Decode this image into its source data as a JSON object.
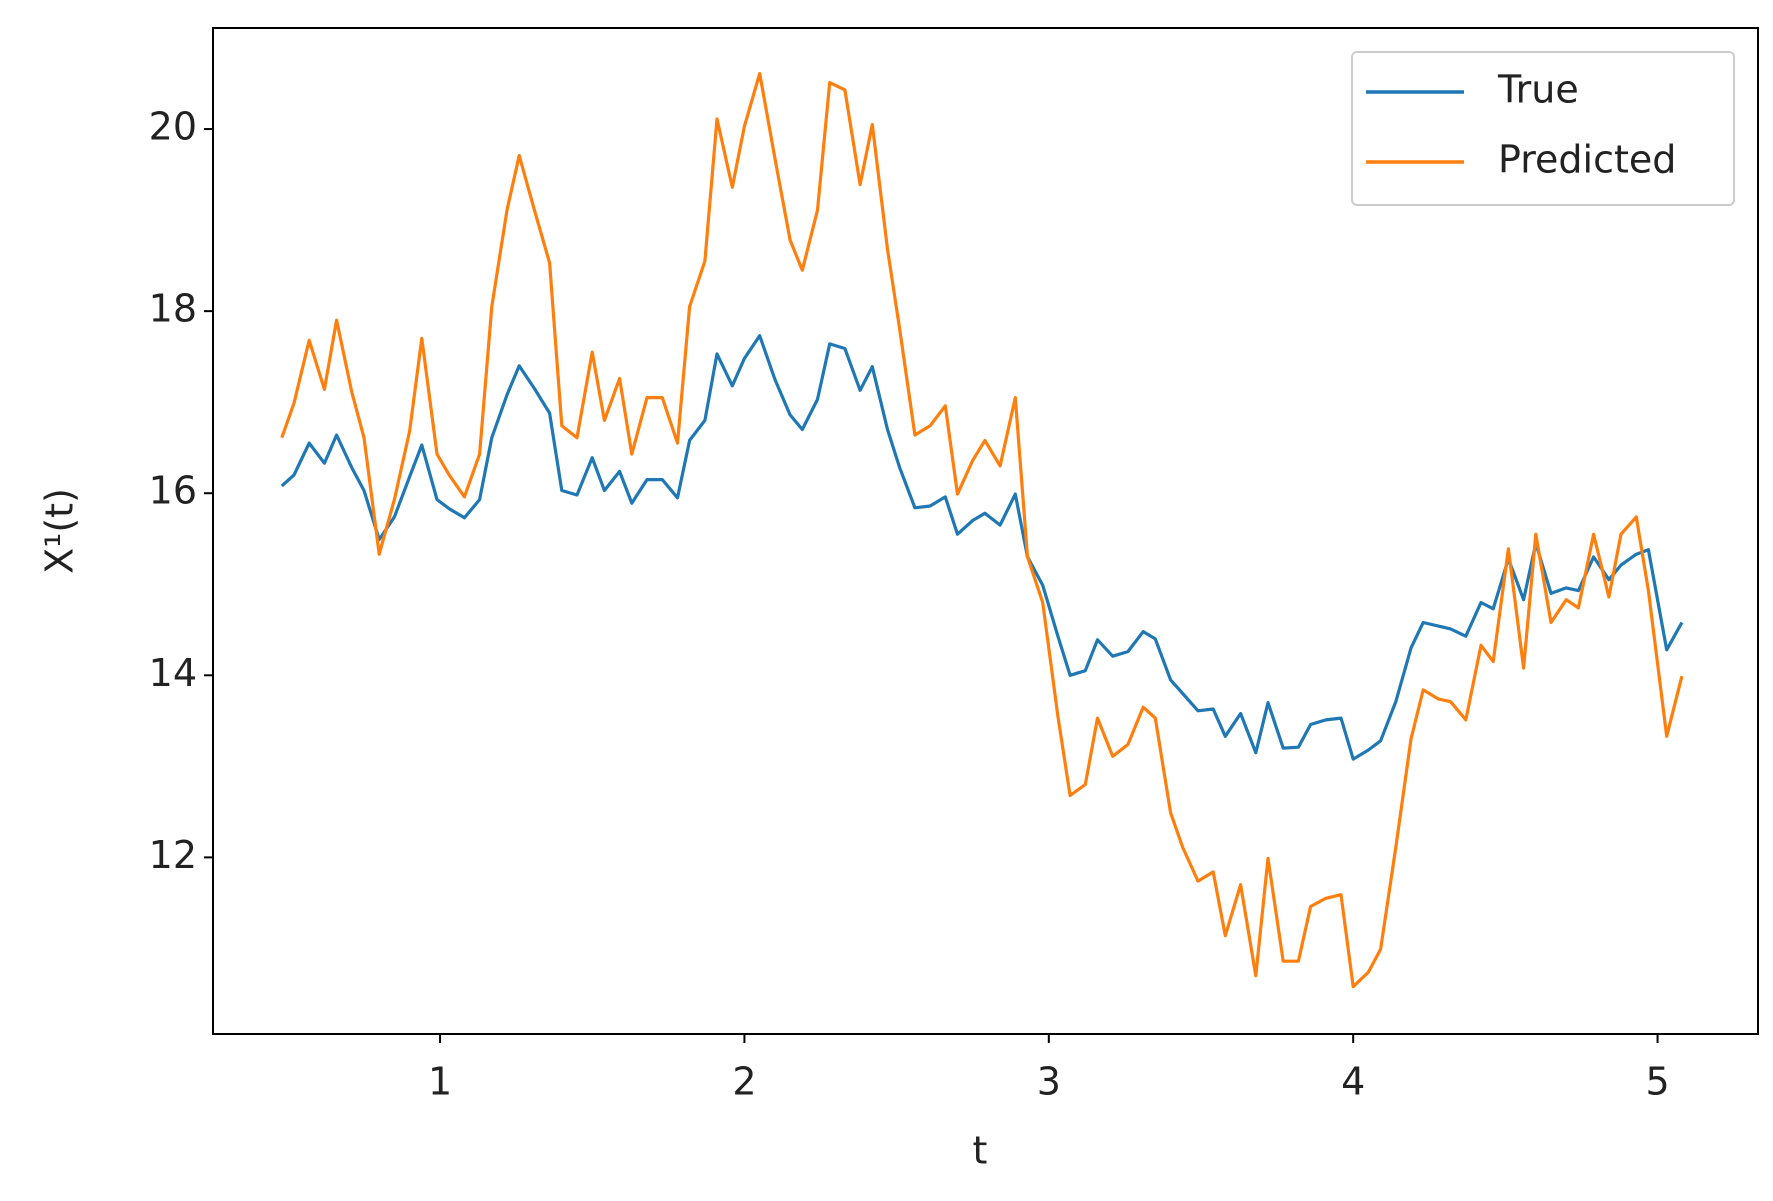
{
  "chart_data": {
    "type": "line",
    "x_label": "t",
    "y_label": "X¹(t)",
    "x": [
      0.48,
      0.52,
      0.57,
      0.62,
      0.66,
      0.71,
      0.75,
      0.8,
      0.85,
      0.9,
      0.94,
      0.99,
      1.03,
      1.08,
      1.13,
      1.17,
      1.22,
      1.26,
      1.31,
      1.36,
      1.4,
      1.45,
      1.5,
      1.54,
      1.59,
      1.63,
      1.68,
      1.73,
      1.78,
      1.82,
      1.87,
      1.91,
      1.96,
      2.0,
      2.05,
      2.1,
      2.15,
      2.19,
      2.24,
      2.28,
      2.33,
      2.38,
      2.42,
      2.47,
      2.51,
      2.56,
      2.61,
      2.66,
      2.7,
      2.75,
      2.79,
      2.84,
      2.89,
      2.93,
      2.98,
      3.03,
      3.07,
      3.12,
      3.16,
      3.21,
      3.26,
      3.31,
      3.35,
      3.4,
      3.44,
      3.49,
      3.54,
      3.58,
      3.63,
      3.68,
      3.72,
      3.77,
      3.82,
      3.86,
      3.91,
      3.96,
      4.0,
      4.05,
      4.09,
      4.14,
      4.19,
      4.23,
      4.28,
      4.32,
      4.37,
      4.42,
      4.46,
      4.51,
      4.56,
      4.6,
      4.65,
      4.7,
      4.74,
      4.79,
      4.84,
      4.88,
      4.93,
      4.97,
      5.03,
      5.08
    ],
    "series": [
      {
        "name": "True",
        "color": "#1f77b4",
        "values": [
          16.08,
          16.2,
          16.55,
          16.33,
          16.64,
          16.28,
          16.03,
          15.49,
          15.74,
          16.18,
          16.53,
          15.93,
          15.83,
          15.73,
          15.93,
          16.61,
          17.08,
          17.4,
          17.15,
          16.88,
          16.03,
          15.98,
          16.39,
          16.03,
          16.24,
          15.89,
          16.15,
          16.15,
          15.95,
          16.58,
          16.8,
          17.53,
          17.18,
          17.48,
          17.73,
          17.25,
          16.86,
          16.7,
          17.03,
          17.64,
          17.59,
          17.13,
          17.39,
          16.7,
          16.28,
          15.84,
          15.86,
          15.96,
          15.55,
          15.7,
          15.78,
          15.65,
          15.99,
          15.3,
          14.99,
          14.43,
          14.0,
          14.05,
          14.39,
          14.21,
          14.26,
          14.48,
          14.4,
          13.95,
          13.8,
          13.61,
          13.63,
          13.33,
          13.58,
          13.15,
          13.7,
          13.2,
          13.21,
          13.46,
          13.51,
          13.53,
          13.08,
          13.18,
          13.28,
          13.71,
          14.3,
          14.58,
          14.54,
          14.51,
          14.43,
          14.8,
          14.73,
          15.28,
          14.83,
          15.45,
          14.9,
          14.96,
          14.93,
          15.3,
          15.05,
          15.21,
          15.33,
          15.38,
          14.28,
          14.58
        ]
      },
      {
        "name": "Predicted",
        "color": "#ff7f0e",
        "values": [
          16.61,
          16.99,
          17.68,
          17.14,
          17.9,
          17.11,
          16.61,
          15.33,
          15.93,
          16.68,
          17.7,
          16.43,
          16.2,
          15.96,
          16.43,
          18.05,
          19.11,
          19.71,
          19.11,
          18.53,
          16.74,
          16.61,
          17.55,
          16.8,
          17.26,
          16.43,
          17.05,
          17.05,
          16.55,
          18.05,
          18.55,
          20.11,
          19.36,
          20.03,
          20.61,
          19.68,
          18.78,
          18.45,
          19.11,
          20.51,
          20.43,
          19.39,
          20.05,
          18.68,
          17.8,
          16.64,
          16.74,
          16.96,
          15.99,
          16.36,
          16.58,
          16.3,
          17.05,
          15.3,
          14.8,
          13.55,
          12.68,
          12.8,
          13.53,
          13.11,
          13.24,
          13.65,
          13.53,
          12.49,
          12.11,
          11.74,
          11.84,
          11.14,
          11.7,
          10.7,
          11.99,
          10.86,
          10.86,
          11.46,
          11.55,
          11.59,
          10.58,
          10.74,
          10.99,
          12.11,
          13.3,
          13.84,
          13.74,
          13.71,
          13.51,
          14.33,
          14.15,
          15.39,
          14.08,
          15.55,
          14.58,
          14.83,
          14.74,
          15.55,
          14.86,
          15.55,
          15.74,
          14.93,
          13.33,
          13.99
        ]
      }
    ],
    "xlim": [
      0.254,
      5.33
    ],
    "ylim": [
      10.06,
      21.11
    ],
    "xticks": [
      1,
      2,
      3,
      4,
      5
    ],
    "yticks": [
      12,
      14,
      16,
      18,
      20
    ],
    "legend": "upper right"
  }
}
